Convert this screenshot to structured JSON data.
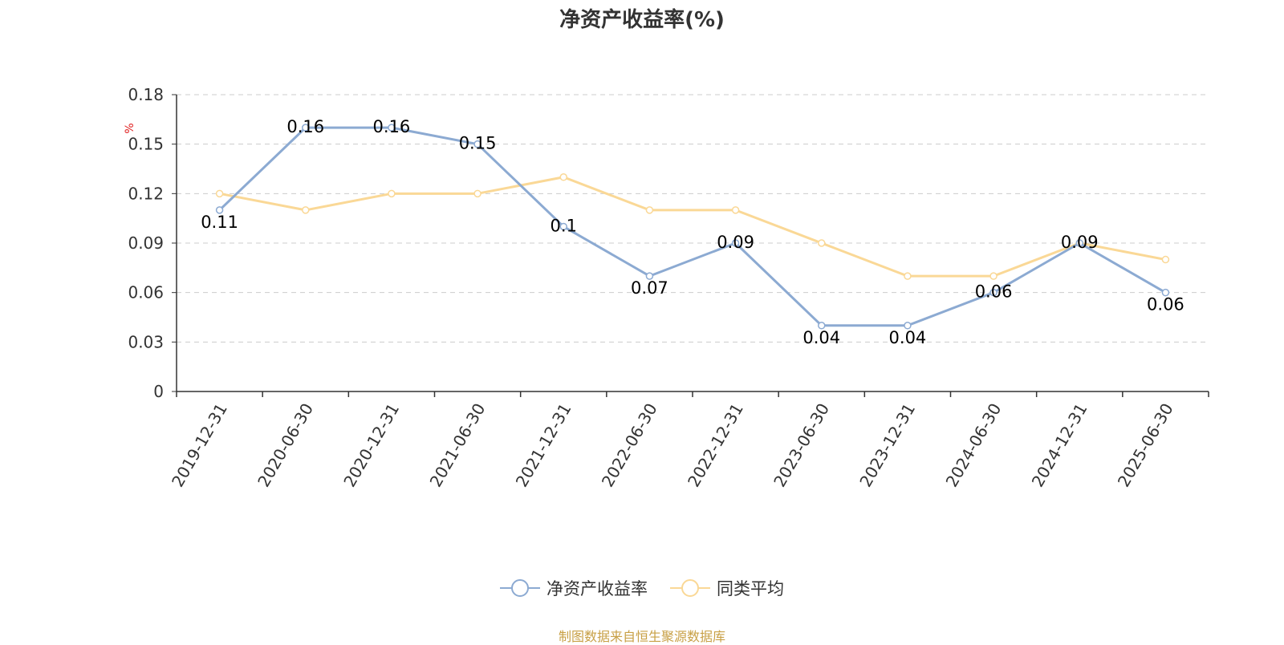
{
  "title": "净资产收益率(%)",
  "source_note": "制图数据来自恒生聚源数据库",
  "colors": {
    "series1": "#8caad2",
    "series2": "#fad896",
    "unit": "#e02020",
    "axis": "#333333",
    "grid": "#cccccc"
  },
  "chart_data": {
    "type": "line",
    "title": "净资产收益率(%)",
    "ylabel": "%",
    "ylim": [
      0,
      0.18
    ],
    "yticks": [
      "0",
      "0.03",
      "0.06",
      "0.09",
      "0.12",
      "0.15",
      "0.18"
    ],
    "grid": true,
    "legend_position": "bottom",
    "categories": [
      "2019-12-31",
      "2020-06-30",
      "2020-12-31",
      "2021-06-30",
      "2021-12-31",
      "2022-06-30",
      "2022-12-31",
      "2023-06-30",
      "2023-12-31",
      "2024-06-30",
      "2024-12-31",
      "2025-06-30"
    ],
    "series": [
      {
        "name": "净资产收益率",
        "values": [
          0.11,
          0.16,
          0.16,
          0.15,
          0.1,
          0.07,
          0.09,
          0.04,
          0.04,
          0.06,
          0.09,
          0.06
        ],
        "labels": [
          "0.11",
          "0.16",
          "0.16",
          "0.15",
          "0.1",
          "0.07",
          "0.09",
          "0.04",
          "0.04",
          "0.06",
          "0.09",
          "0.06"
        ]
      },
      {
        "name": "同类平均",
        "values": [
          0.12,
          0.11,
          0.12,
          0.12,
          0.13,
          0.11,
          0.11,
          0.09,
          0.07,
          0.07,
          0.09,
          0.08
        ]
      }
    ]
  }
}
